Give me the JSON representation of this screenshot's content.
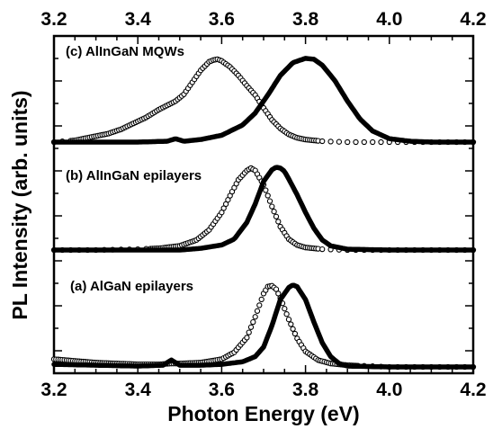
{
  "chart_data": {
    "type": "line",
    "xlabel": "Photon Energy (eV)",
    "ylabel": "PL Intensity (arb. units)",
    "xlim": [
      3.2,
      4.2
    ],
    "x_ticks": [
      "3.2",
      "3.4",
      "3.6",
      "3.8",
      "4.0",
      "4.2"
    ],
    "top_axis_ticks": [
      "3.2",
      "3.4",
      "3.6",
      "3.8",
      "4.0",
      "4.2"
    ],
    "y_tick_labels": false,
    "grid": false,
    "legend": "none",
    "panels": [
      {
        "label": "(c) AlInGaN MQWs",
        "series": [
          {
            "style": "open-circles",
            "x": [
              3.2,
              3.25,
              3.3,
              3.33,
              3.36,
              3.39,
              3.42,
              3.45,
              3.47,
              3.49,
              3.51,
              3.53,
              3.55,
              3.57,
              3.58,
              3.59,
              3.6,
              3.62,
              3.64,
              3.66,
              3.68,
              3.7,
              3.72,
              3.74,
              3.76,
              3.78,
              3.8,
              3.84,
              3.9,
              4.0,
              4.1,
              4.2
            ],
            "y": [
              0.0,
              0.02,
              0.07,
              0.1,
              0.15,
              0.22,
              0.29,
              0.38,
              0.43,
              0.48,
              0.56,
              0.7,
              0.84,
              0.94,
              0.96,
              0.97,
              0.95,
              0.88,
              0.78,
              0.66,
              0.55,
              0.4,
              0.26,
              0.16,
              0.09,
              0.05,
              0.03,
              0.01,
              0.0,
              0.0,
              0.0,
              0.0
            ]
          },
          {
            "style": "filled-line",
            "x": [
              3.2,
              3.4,
              3.47,
              3.49,
              3.51,
              3.55,
              3.6,
              3.65,
              3.68,
              3.71,
              3.74,
              3.77,
              3.8,
              3.82,
              3.84,
              3.87,
              3.9,
              3.93,
              3.96,
              4.0,
              4.05,
              4.1,
              4.2
            ],
            "y": [
              0.0,
              0.0,
              0.01,
              0.04,
              0.01,
              0.03,
              0.08,
              0.2,
              0.34,
              0.55,
              0.78,
              0.93,
              0.98,
              0.97,
              0.9,
              0.72,
              0.48,
              0.27,
              0.13,
              0.04,
              0.01,
              0.0,
              0.0
            ]
          }
        ]
      },
      {
        "label": "(b) AlInGaN epilayers",
        "series": [
          {
            "style": "open-circles",
            "x": [
              3.2,
              3.3,
              3.4,
              3.45,
              3.5,
              3.54,
              3.57,
              3.6,
              3.62,
              3.64,
              3.66,
              3.67,
              3.68,
              3.7,
              3.72,
              3.74,
              3.76,
              3.78,
              3.8,
              3.84,
              3.9,
              4.0,
              4.1,
              4.2
            ],
            "y": [
              0.0,
              0.0,
              0.01,
              0.02,
              0.05,
              0.12,
              0.24,
              0.45,
              0.65,
              0.84,
              0.95,
              0.98,
              0.95,
              0.78,
              0.52,
              0.28,
              0.13,
              0.06,
              0.03,
              0.01,
              0.0,
              0.0,
              0.0,
              0.0
            ]
          },
          {
            "style": "filled-line",
            "x": [
              3.2,
              3.4,
              3.5,
              3.55,
              3.6,
              3.63,
              3.66,
              3.68,
              3.7,
              3.72,
              3.73,
              3.74,
              3.75,
              3.76,
              3.78,
              3.8,
              3.82,
              3.84,
              3.86,
              3.9,
              4.0,
              4.2
            ],
            "y": [
              0.0,
              0.0,
              0.0,
              0.02,
              0.06,
              0.13,
              0.33,
              0.55,
              0.82,
              0.96,
              0.99,
              0.98,
              0.94,
              0.85,
              0.66,
              0.45,
              0.26,
              0.12,
              0.05,
              0.01,
              0.0,
              0.0
            ]
          }
        ]
      },
      {
        "label": "(a) AlGaN epilayers",
        "series": [
          {
            "style": "open-circles",
            "x": [
              3.2,
              3.25,
              3.3,
              3.35,
              3.4,
              3.45,
              3.48,
              3.5,
              3.55,
              3.6,
              3.63,
              3.66,
              3.68,
              3.7,
              3.71,
              3.72,
              3.73,
              3.74,
              3.76,
              3.78,
              3.8,
              3.83,
              3.86,
              3.9,
              4.0,
              4.1,
              4.2
            ],
            "y": [
              0.09,
              0.07,
              0.05,
              0.04,
              0.03,
              0.03,
              0.04,
              0.04,
              0.05,
              0.09,
              0.17,
              0.34,
              0.58,
              0.85,
              0.93,
              0.94,
              0.9,
              0.8,
              0.55,
              0.33,
              0.18,
              0.08,
              0.04,
              0.02,
              0.0,
              0.0,
              0.0
            ]
          },
          {
            "style": "filled-line",
            "x": [
              3.2,
              3.3,
              3.4,
              3.46,
              3.48,
              3.5,
              3.55,
              3.6,
              3.65,
              3.68,
              3.7,
              3.72,
              3.74,
              3.76,
              3.77,
              3.78,
              3.8,
              3.82,
              3.84,
              3.86,
              3.88,
              3.9,
              4.0,
              4.1,
              4.2
            ],
            "y": [
              0.03,
              0.02,
              0.01,
              0.02,
              0.08,
              0.02,
              0.02,
              0.03,
              0.06,
              0.12,
              0.23,
              0.48,
              0.78,
              0.92,
              0.95,
              0.93,
              0.78,
              0.52,
              0.28,
              0.12,
              0.04,
              0.01,
              0.0,
              0.0,
              0.0
            ]
          }
        ]
      }
    ]
  }
}
